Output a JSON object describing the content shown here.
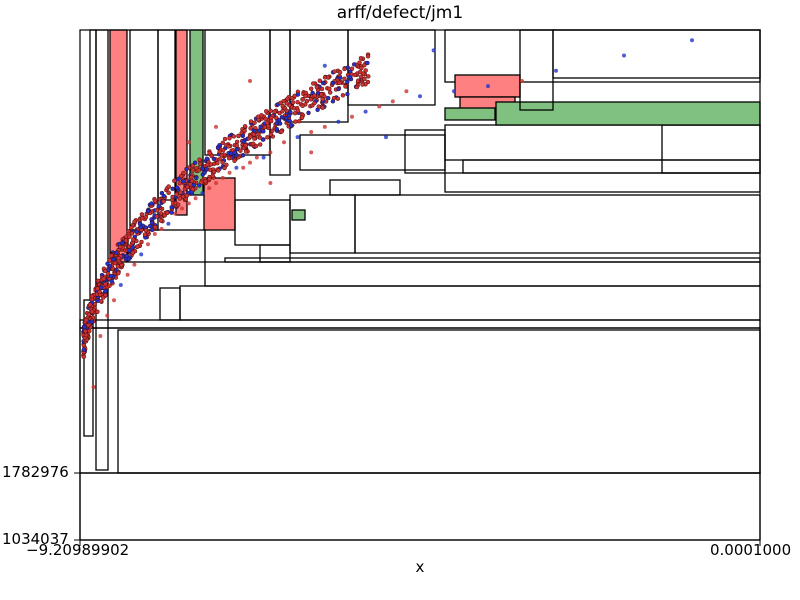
{
  "chart_data": {
    "type": "scatter",
    "title": "arff/defect/jm1",
    "xlabel": "x",
    "ylabel": "",
    "x_tick_labels": [
      "−9.20989902",
      "0.0001000"
    ],
    "y_tick_labels": [
      "1782976",
      "1034037"
    ],
    "grid": false,
    "colors": {
      "region_red": "#ff8080",
      "region_green": "#80c080",
      "point_blue": "#2233cc",
      "point_red": "#cc3333",
      "edge": "#000000"
    },
    "x": [
      0.02,
      0.03,
      0.04,
      0.05,
      0.06,
      0.07,
      0.08,
      0.09,
      0.1,
      0.11,
      0.12,
      0.13,
      0.14,
      0.15,
      0.16,
      0.17,
      0.18,
      0.19,
      0.2,
      0.21,
      0.22,
      0.23,
      0.24,
      0.25,
      0.26,
      0.27,
      0.28,
      0.3,
      0.32,
      0.34,
      0.36,
      0.38,
      0.4,
      0.42,
      0.44,
      0.46,
      0.5,
      0.55,
      0.6,
      0.65,
      0.7,
      0.8,
      0.9,
      0.25,
      0.3,
      0.36,
      0.16,
      0.2,
      0.28,
      0.34,
      0.45,
      0.52,
      0.48
    ],
    "y": [
      0.3,
      0.4,
      0.44,
      0.47,
      0.5,
      0.52,
      0.54,
      0.56,
      0.58,
      0.6,
      0.61,
      0.62,
      0.64,
      0.65,
      0.66,
      0.67,
      0.68,
      0.69,
      0.7,
      0.71,
      0.72,
      0.73,
      0.73,
      0.74,
      0.75,
      0.75,
      0.76,
      0.78,
      0.79,
      0.8,
      0.81,
      0.82,
      0.83,
      0.84,
      0.85,
      0.86,
      0.87,
      0.88,
      0.89,
      0.9,
      0.92,
      0.95,
      0.98,
      0.9,
      0.85,
      0.93,
      0.78,
      0.81,
      0.7,
      0.76,
      0.79,
      0.96,
      0.88
    ],
    "series_colors": [
      "red",
      "red",
      "red",
      "red",
      "blue",
      "red",
      "red",
      "blue",
      "red",
      "red",
      "red",
      "blue",
      "red",
      "red",
      "red",
      "red",
      "blue",
      "red",
      "red",
      "red",
      "red",
      "blue",
      "red",
      "red",
      "red",
      "blue",
      "red",
      "red",
      "blue",
      "red",
      "red",
      "blue",
      "red",
      "blue",
      "red",
      "red",
      "blue",
      "blue",
      "blue",
      "red",
      "blue",
      "blue",
      "blue",
      "red",
      "red",
      "blue",
      "red",
      "red",
      "red",
      "red",
      "blue",
      "blue",
      "red"
    ]
  }
}
